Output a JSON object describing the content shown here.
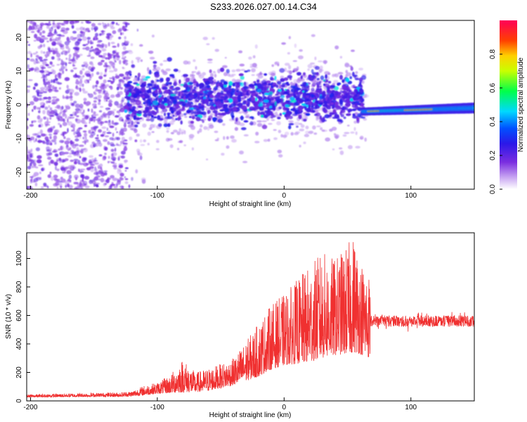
{
  "title": "S233.2026.027.00.14.C34",
  "chart_data": [
    {
      "type": "heatmap",
      "name": "spectrogram",
      "xlabel": "Height of straight line (km)",
      "ylabel": "Frequency (Hz)",
      "xlim": [
        -203,
        150
      ],
      "ylim": [
        -25,
        25
      ],
      "xticks": [
        -200,
        -100,
        0,
        100
      ],
      "yticks": [
        -20,
        -10,
        0,
        10,
        20
      ],
      "colorbar": {
        "label": "Normalized spectral amplitude",
        "range": [
          0,
          1
        ],
        "ticks": [
          "0.0",
          "0.2",
          "0.4",
          "0.6",
          "0.8"
        ],
        "tick_values": [
          0.0,
          0.2,
          0.4,
          0.6,
          0.8
        ]
      },
      "regions": [
        {
          "x": [
            -203,
            -125
          ],
          "freq_center": 0,
          "freq_halfwidth": 25,
          "amplitude": 0.12,
          "description": "diffuse low amplitude"
        },
        {
          "x": [
            -125,
            62
          ],
          "freq_center": 2,
          "freq_halfwidth": 6,
          "amplitude": 0.2
        },
        {
          "x": [
            62,
            150
          ],
          "freq_center": -2,
          "freq_halfwidth": 1,
          "amplitude": 0.5
        },
        {
          "x": [
            65,
            115
          ],
          "freq_center": -2,
          "freq_halfwidth": 0.5,
          "amplitude": 0.95
        }
      ],
      "colors": [
        "#9b6fe0",
        "#6a2bd8",
        "#3a1ce0",
        "#0020ff",
        "#00d8ff",
        "#00ff60",
        "#ffe000",
        "#ff2020"
      ]
    },
    {
      "type": "line",
      "name": "snr",
      "xlabel": "Height of straight line (km)",
      "ylabel": "SNR (10 * v/v)",
      "xlim": [
        -203,
        150
      ],
      "ylim": [
        0,
        1180
      ],
      "xticks": [
        -200,
        -100,
        0,
        100
      ],
      "yticks": [
        0,
        200,
        400,
        600,
        800,
        1000
      ],
      "color": "#f03030",
      "envelope": {
        "x": [
          -203,
          -160,
          -130,
          -120,
          -110,
          -100,
          -90,
          -80,
          -75,
          -70,
          -60,
          -50,
          -40,
          -30,
          -20,
          -15,
          -10,
          0,
          10,
          20,
          30,
          40,
          50,
          55,
          60,
          68,
          72,
          90,
          110,
          130,
          150
        ],
        "low": [
          25,
          28,
          30,
          32,
          40,
          50,
          55,
          60,
          60,
          60,
          70,
          90,
          110,
          140,
          170,
          200,
          220,
          250,
          260,
          270,
          300,
          320,
          330,
          340,
          330,
          300,
          540,
          550,
          555,
          550,
          555
        ],
        "high": [
          45,
          55,
          60,
          70,
          110,
          130,
          180,
          300,
          250,
          200,
          230,
          260,
          300,
          420,
          550,
          620,
          680,
          750,
          850,
          950,
          1050,
          1000,
          1100,
          1170,
          1000,
          900,
          660,
          640,
          640,
          630,
          630
        ]
      }
    }
  ]
}
